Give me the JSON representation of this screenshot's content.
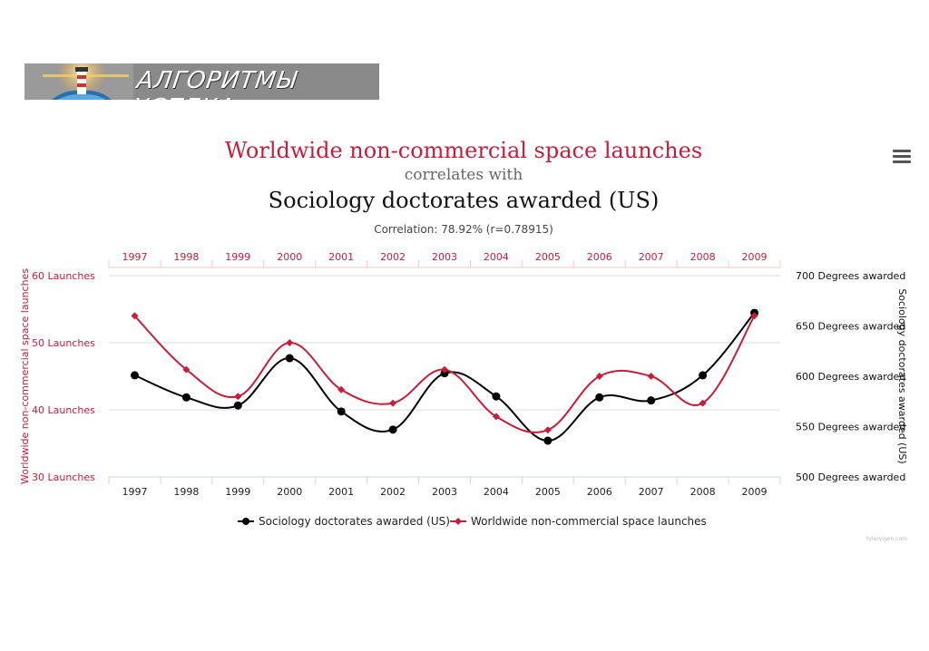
{
  "logo": {
    "text": "АЛГОРИТМЫ УСПЕХА"
  },
  "chart_data": {
    "type": "line",
    "title": "Worldwide non-commercial space launches",
    "subtitle": "correlates with",
    "title2": "Sociology doctorates awarded (US)",
    "correlation": "Correlation: 78.92% (r=0.78915)",
    "categories": [
      "1997",
      "1998",
      "1999",
      "2000",
      "2001",
      "2002",
      "2003",
      "2004",
      "2005",
      "2006",
      "2007",
      "2008",
      "2009"
    ],
    "left_axis": {
      "label": "Worldwide non-commercial space launches",
      "ylim": [
        30,
        60
      ],
      "ticks": [
        30,
        40,
        50,
        60
      ],
      "tick_labels": [
        "30 Launches",
        "40 Launches",
        "50 Launches",
        "60 Launches"
      ]
    },
    "right_axis": {
      "label": "Sociology doctorates awarded (US)",
      "ylim": [
        500,
        700
      ],
      "ticks": [
        500,
        550,
        600,
        650,
        700
      ],
      "tick_labels": [
        "500 Degrees awarded",
        "550 Degrees awarded",
        "600 Degrees awarded",
        "650 Degrees awarded",
        "700 Degrees awarded"
      ]
    },
    "series": [
      {
        "name": "Sociology doctorates awarded (US)",
        "axis": "right",
        "color": "#000000",
        "marker": "circle",
        "values": [
          601,
          579,
          571,
          618,
          565,
          547,
          603,
          580,
          536,
          579,
          576,
          601,
          663
        ]
      },
      {
        "name": "Worldwide non-commercial space launches",
        "axis": "left",
        "color": "#c41e3a",
        "marker": "diamond",
        "values": [
          54,
          46,
          42,
          50,
          43,
          41,
          46,
          39,
          37,
          45,
          45,
          41,
          54
        ]
      }
    ],
    "grid": true,
    "legend": "bottom-center"
  },
  "colors": {
    "red": "#c41e3a",
    "black": "#000000",
    "grid": "#d8dde6"
  },
  "ui": {
    "menu_icon": "menu-icon"
  }
}
